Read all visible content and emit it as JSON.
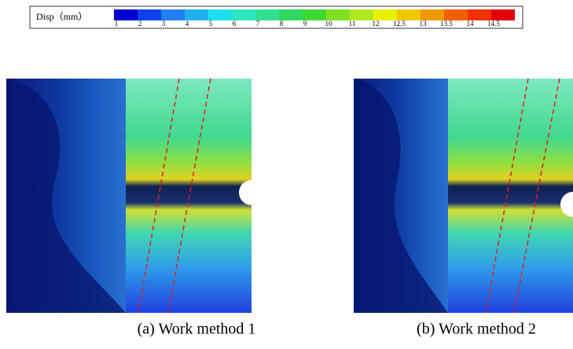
{
  "legend": {
    "label": "Disp（mm）",
    "ticks": [
      "1",
      "2",
      "3",
      "4",
      "5",
      "6",
      "7",
      "8",
      "9",
      "10",
      "11",
      "12",
      "12.5",
      "13",
      "13.5",
      "14",
      "14.5"
    ]
  },
  "panels": [
    {
      "caption": "(a) Work method 1"
    },
    {
      "caption": "(b) Work method 2"
    }
  ]
}
